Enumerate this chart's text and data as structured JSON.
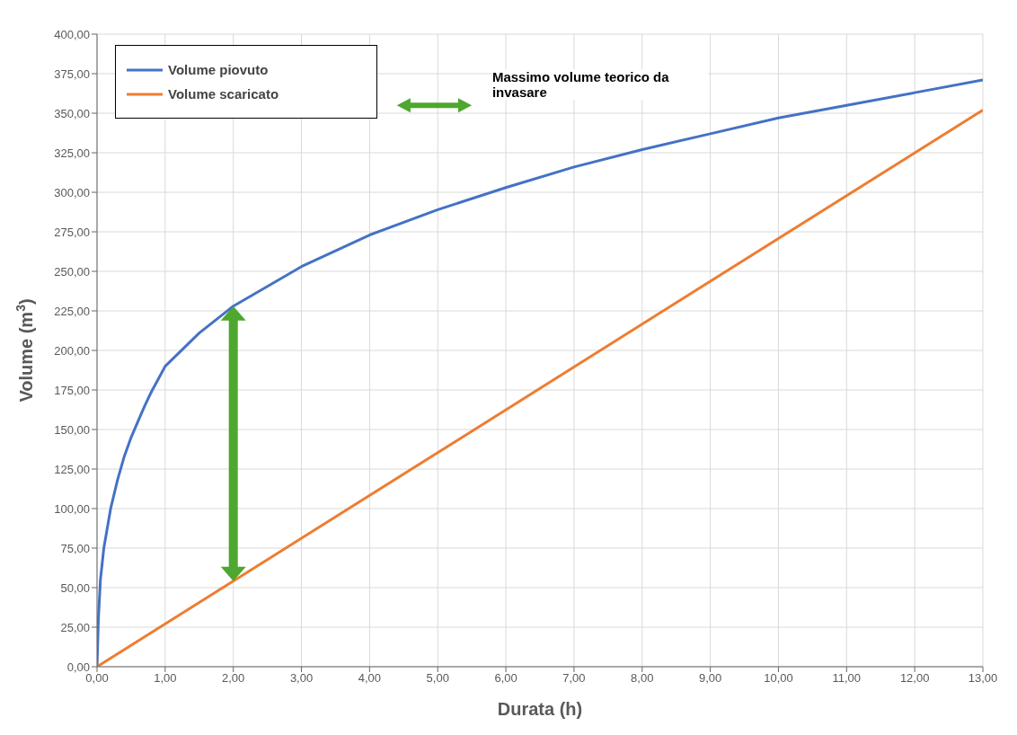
{
  "chart_data": {
    "type": "line",
    "xlabel": "Durata (h)",
    "ylabel": "Volume  (m$^{3}$)",
    "annotations": [
      "Massimo volume teorico da invasare"
    ],
    "series": [
      {
        "name": "Volume piovuto",
        "color": "#4472c4",
        "x": [
          0,
          0.02,
          0.05,
          0.1,
          0.2,
          0.3,
          0.4,
          0.5,
          0.6,
          0.7,
          0.8,
          0.9,
          1,
          1.5,
          2,
          3,
          4,
          5,
          6,
          7,
          8,
          9,
          10,
          11,
          12,
          13
        ],
        "values": [
          0,
          30,
          55,
          75,
          100,
          118,
          133,
          145,
          155,
          165,
          174,
          182,
          190,
          211,
          228,
          253,
          273,
          289,
          303,
          316,
          327,
          337,
          347,
          355,
          363,
          371
        ]
      },
      {
        "name": "Volume scaricato",
        "color": "#ed7d31",
        "x": [
          0,
          13
        ],
        "values": [
          0,
          352
        ]
      }
    ],
    "xlim": [
      0,
      13
    ],
    "xticks": [
      {
        "value": 0,
        "label": "0,00"
      },
      {
        "value": 1,
        "label": "1,00"
      },
      {
        "value": 2,
        "label": "2,00"
      },
      {
        "value": 3,
        "label": "3,00"
      },
      {
        "value": 4,
        "label": "4,00"
      },
      {
        "value": 5,
        "label": "5,00"
      },
      {
        "value": 6,
        "label": "6,00"
      },
      {
        "value": 7,
        "label": "7,00"
      },
      {
        "value": 8,
        "label": "8,00"
      },
      {
        "value": 9,
        "label": "9,00"
      },
      {
        "value": 10,
        "label": "10,00"
      },
      {
        "value": 11,
        "label": "11,00"
      },
      {
        "value": 12,
        "label": "12,00"
      },
      {
        "value": 13,
        "label": "13,00"
      }
    ],
    "ylim": [
      0,
      400
    ],
    "yticks": [
      {
        "value": 0,
        "label": "0,00"
      },
      {
        "value": 25,
        "label": "25,00"
      },
      {
        "value": 50,
        "label": "50,00"
      },
      {
        "value": 75,
        "label": "75,00"
      },
      {
        "value": 100,
        "label": "100,00"
      },
      {
        "value": 125,
        "label": "125,00"
      },
      {
        "value": 150,
        "label": "150,00"
      },
      {
        "value": 175,
        "label": "175,00"
      },
      {
        "value": 200,
        "label": "200,00"
      },
      {
        "value": 225,
        "label": "225,00"
      },
      {
        "value": 250,
        "label": "250,00"
      },
      {
        "value": 275,
        "label": "275,00"
      },
      {
        "value": 300,
        "label": "300,00"
      },
      {
        "value": 325,
        "label": "325,00"
      },
      {
        "value": 350,
        "label": "350,00"
      },
      {
        "value": 375,
        "label": "375,00"
      },
      {
        "value": 400,
        "label": "400,00"
      }
    ],
    "grid": true,
    "legend": "top left",
    "marker": "none",
    "line_style": "solid"
  }
}
